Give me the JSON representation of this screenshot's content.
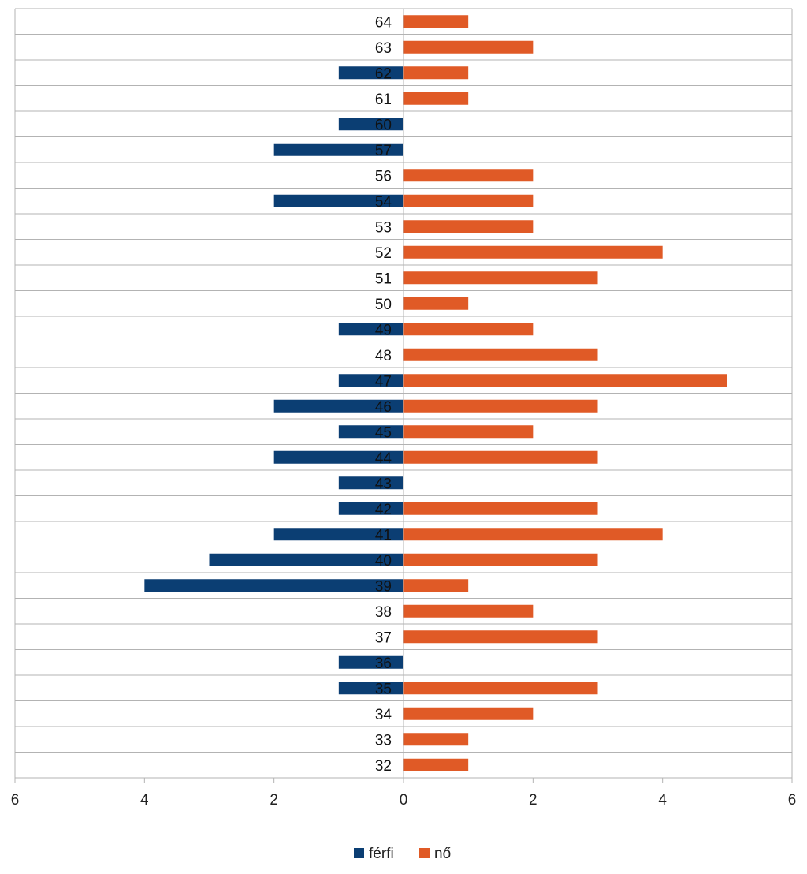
{
  "chart_data": {
    "type": "bar",
    "orientation": "horizontal",
    "style": "population-pyramid",
    "categories": [
      "32",
      "33",
      "34",
      "35",
      "36",
      "37",
      "38",
      "39",
      "40",
      "41",
      "42",
      "43",
      "44",
      "45",
      "46",
      "47",
      "48",
      "49",
      "50",
      "51",
      "52",
      "53",
      "54",
      "56",
      "57",
      "60",
      "61",
      "62",
      "63",
      "64"
    ],
    "series": [
      {
        "name": "férfi",
        "color": "#0b3e73",
        "values": [
          0,
          0,
          0,
          1,
          1,
          0,
          0,
          4,
          3,
          2,
          1,
          1,
          2,
          1,
          2,
          1,
          0,
          1,
          0,
          0,
          0,
          0,
          2,
          0,
          2,
          1,
          0,
          1,
          0,
          0
        ]
      },
      {
        "name": "nő",
        "color": "#e05a26",
        "values": [
          1,
          1,
          2,
          3,
          0,
          3,
          2,
          1,
          3,
          4,
          3,
          0,
          3,
          2,
          3,
          5,
          3,
          2,
          1,
          3,
          4,
          2,
          2,
          2,
          0,
          0,
          1,
          1,
          2,
          1
        ]
      }
    ],
    "xlim": [
      -6,
      6
    ],
    "x_ticks": [
      -6,
      -4,
      -2,
      0,
      2,
      4,
      6
    ],
    "x_tick_labels": [
      "6",
      "4",
      "2",
      "0",
      "2",
      "4",
      "6"
    ],
    "grid": "horizontal lines between categories",
    "legend_position": "bottom-center",
    "title": "",
    "xlabel": "",
    "ylabel": ""
  }
}
